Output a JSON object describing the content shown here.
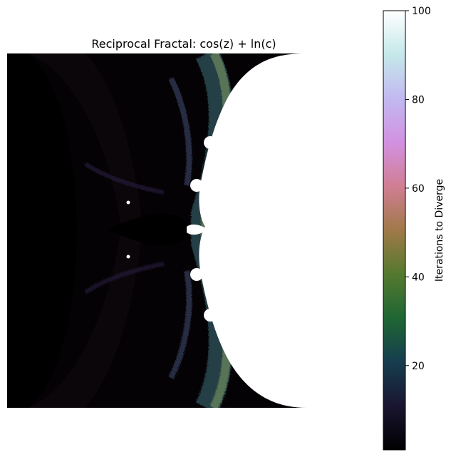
{
  "chart_data": {
    "type": "heatmap",
    "title": "Reciprocal Fractal: cos(z) + ln(c)",
    "xlabel": "",
    "ylabel": "",
    "axes_visible": false,
    "colormap": "cubehelix",
    "colorbar": {
      "label": "Iterations to Diverge",
      "range": [
        1,
        100
      ],
      "ticks": [
        20,
        40,
        60,
        80,
        100
      ],
      "position": "right"
    },
    "regions": [
      {
        "name": "non-divergent region",
        "value": 100,
        "color": "#ffffff"
      },
      {
        "name": "fast-diverging background",
        "value": 1,
        "color": "#050205"
      }
    ]
  },
  "colors": {
    "cmap_stops": [
      "#000000",
      "#1a1530",
      "#163d4e",
      "#1f6634",
      "#54792f",
      "#a07949",
      "#d07e93",
      "#d291e1",
      "#c2b9f0",
      "#c5e8e9",
      "#ffffff"
    ]
  }
}
